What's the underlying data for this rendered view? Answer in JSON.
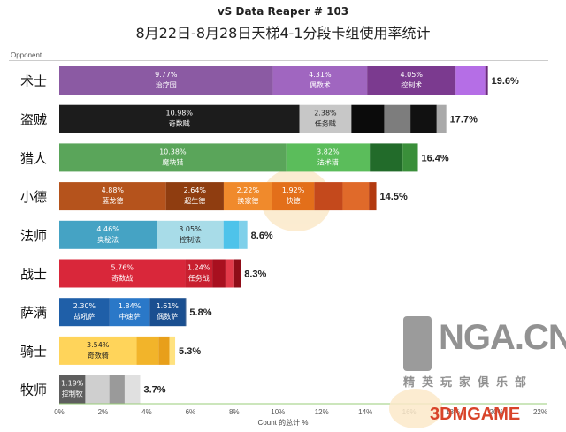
{
  "title": "vS Data Reaper #  103",
  "subtitle": "8月22日-8月28日天梯4-1分段卡组使用率统计",
  "watermark": {
    "logo_text": "NGA.CN",
    "sub_text": "精英玩家俱乐部",
    "brand_text": "3DMGAME",
    "icon": "bear-claw-icon"
  },
  "chart_data": {
    "type": "bar",
    "orientation": "horizontal-stacked",
    "y_header": "Opponent",
    "xlabel": "Count 的总计 %",
    "xlim": [
      0,
      22
    ],
    "xticks": [
      "0%",
      "2%",
      "4%",
      "6%",
      "8%",
      "10%",
      "12%",
      "14%",
      "16%",
      "18%",
      "20%",
      "22%"
    ],
    "grid": false,
    "rows": [
      {
        "category": "术士",
        "total_label": "19.6%",
        "total": 19.6,
        "segments": [
          {
            "value": 9.77,
            "pct": "9.77%",
            "name": "治疗园",
            "color": "#8b5aa3"
          },
          {
            "value": 4.31,
            "pct": "4.31%",
            "name": "偶数术",
            "color": "#a066c0"
          },
          {
            "value": 4.05,
            "pct": "4.05%",
            "name": "控制术",
            "color": "#7b3a8f"
          },
          {
            "value": 1.35,
            "color": "#b56ee6"
          },
          {
            "value": 0.12,
            "color": "#6a2a7a"
          }
        ]
      },
      {
        "category": "盗贼",
        "total_label": "17.7%",
        "total": 17.7,
        "segments": [
          {
            "value": 10.98,
            "pct": "10.98%",
            "name": "奇数贼",
            "color": "#1c1c1c"
          },
          {
            "value": 2.38,
            "pct": "2.38%",
            "name": "任务贼",
            "color": "#c7c7c7"
          },
          {
            "value": 1.5,
            "color": "#0b0b0b"
          },
          {
            "value": 1.2,
            "color": "#7d7d7d"
          },
          {
            "value": 1.2,
            "color": "#111111"
          },
          {
            "value": 0.44,
            "color": "#a9a9a9"
          }
        ]
      },
      {
        "category": "猎人",
        "total_label": "16.4%",
        "total": 16.4,
        "segments": [
          {
            "value": 10.38,
            "pct": "10.38%",
            "name": "魔块猎",
            "color": "#5aa55a"
          },
          {
            "value": 3.82,
            "pct": "3.82%",
            "name": "法术猎",
            "color": "#5bbd5b"
          },
          {
            "value": 1.5,
            "color": "#226b2a"
          },
          {
            "value": 0.7,
            "color": "#3a8f3a"
          }
        ]
      },
      {
        "category": "小德",
        "total_label": "14.5%",
        "total": 14.5,
        "segments": [
          {
            "value": 4.88,
            "pct": "4.88%",
            "name": "蓝龙德",
            "color": "#b5531c"
          },
          {
            "value": 2.64,
            "pct": "2.64%",
            "name": "超生德",
            "color": "#8f3d10"
          },
          {
            "value": 2.22,
            "pct": "2.22%",
            "name": "换家德",
            "color": "#f08a2c"
          },
          {
            "value": 1.92,
            "pct": "1.92%",
            "name": "快德",
            "color": "#e36f1a"
          },
          {
            "value": 1.3,
            "color": "#c4491c"
          },
          {
            "value": 1.2,
            "color": "#e06a2a"
          },
          {
            "value": 0.34,
            "color": "#b33a10"
          }
        ]
      },
      {
        "category": "法师",
        "total_label": "8.6%",
        "total": 8.6,
        "segments": [
          {
            "value": 4.46,
            "pct": "4.46%",
            "name": "奥秘法",
            "color": "#45a3c4"
          },
          {
            "value": 3.05,
            "pct": "3.05%",
            "name": "控制法",
            "color": "#a8dce8"
          },
          {
            "value": 0.7,
            "color": "#4ec3ea"
          },
          {
            "value": 0.39,
            "color": "#7fd0ea"
          }
        ]
      },
      {
        "category": "战士",
        "total_label": "8.3%",
        "total": 8.3,
        "segments": [
          {
            "value": 5.76,
            "pct": "5.76%",
            "name": "奇数战",
            "color": "#d9273a"
          },
          {
            "value": 1.24,
            "pct": "1.24%",
            "name": "任务战",
            "color": "#c81f2f"
          },
          {
            "value": 0.6,
            "color": "#a8101f"
          },
          {
            "value": 0.4,
            "color": "#e23a4a"
          },
          {
            "value": 0.3,
            "color": "#8f0d18"
          }
        ]
      },
      {
        "category": "萨满",
        "total_label": "5.8%",
        "total": 5.8,
        "segments": [
          {
            "value": 2.3,
            "pct": "2.30%",
            "name": "战吼萨",
            "color": "#1f5fa8"
          },
          {
            "value": 1.84,
            "pct": "1.84%",
            "name": "中速萨",
            "color": "#2a78c8"
          },
          {
            "value": 1.61,
            "pct": "1.61%",
            "name": "偶数萨",
            "color": "#1a4f90"
          },
          {
            "value": 0.05,
            "color": "#174682"
          }
        ]
      },
      {
        "category": "骑士",
        "total_label": "5.3%",
        "total": 5.3,
        "segments": [
          {
            "value": 3.54,
            "pct": "3.54%",
            "name": "奇数骑",
            "color": "#ffd45a"
          },
          {
            "value": 1.0,
            "color": "#f2b42a"
          },
          {
            "value": 0.5,
            "color": "#e89f1a"
          },
          {
            "value": 0.26,
            "color": "#ffe27f"
          }
        ]
      },
      {
        "category": "牧师",
        "total_label": "3.7%",
        "total": 3.7,
        "segments": [
          {
            "value": 1.19,
            "pct": "1.19%",
            "name": "控制牧",
            "color": "#5e5e5e"
          },
          {
            "value": 1.1,
            "color": "#cfcfcf"
          },
          {
            "value": 0.7,
            "color": "#9a9a9a"
          },
          {
            "value": 0.71,
            "color": "#e0e0e0"
          }
        ]
      }
    ]
  }
}
